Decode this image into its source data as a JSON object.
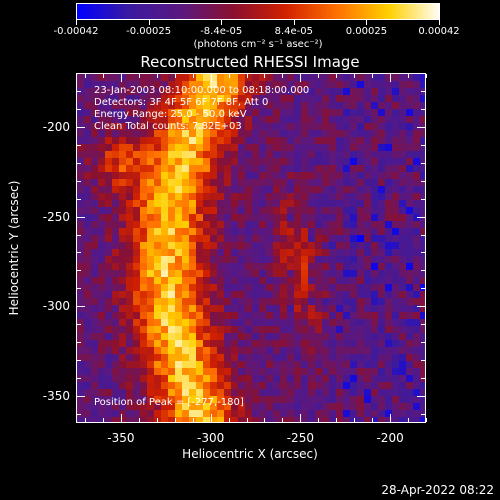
{
  "colorbar": {
    "ticks": [
      {
        "label": "-0.00042",
        "pos": 0.0
      },
      {
        "label": "-0.00025",
        "pos": 0.2
      },
      {
        "label": "-8.4e-05",
        "pos": 0.4
      },
      {
        "label": "8.4e-05",
        "pos": 0.6
      },
      {
        "label": "0.00025",
        "pos": 0.8
      },
      {
        "label": "0.00042",
        "pos": 1.0
      }
    ],
    "unit_label": "(photons cm⁻² s⁻¹ asec⁻²)",
    "stops": [
      "#0000ff",
      "#3a1aa0",
      "#5a1880",
      "#8a1030",
      "#d02000",
      "#ff7000",
      "#ffd000",
      "#ffffff"
    ]
  },
  "plot": {
    "title": "Reconstructed RHESSI Image",
    "annotations": {
      "time_range": "23-Jan-2003 08:10:00.000 to 08:18:00.000",
      "detectors": "Detectors: 3F 4F 5F 6F 7F 8F, Att 0",
      "energy_range": "Energy Range: 25.0 - 50.0 keV",
      "clean_counts": "Clean    Total counts: 7.82E+03",
      "peak_position": "Position of Peak = [-277,-180]"
    },
    "x_axis": {
      "title": "Heliocentric X (arcsec)",
      "range": [
        -375,
        -180
      ],
      "ticks": [
        "-350",
        "-300",
        "-250",
        "-200"
      ],
      "tick_values": [
        -350,
        -300,
        -250,
        -200
      ]
    },
    "y_axis": {
      "title": "Heliocentric Y (arcsec)",
      "range": [
        -365,
        -170
      ],
      "ticks": [
        "-200",
        "-250",
        "-300",
        "-350"
      ],
      "tick_values": [
        -200,
        -250,
        -300,
        -350
      ]
    }
  },
  "footer": {
    "date_stamp": "28-Apr-2022 08:22"
  }
}
